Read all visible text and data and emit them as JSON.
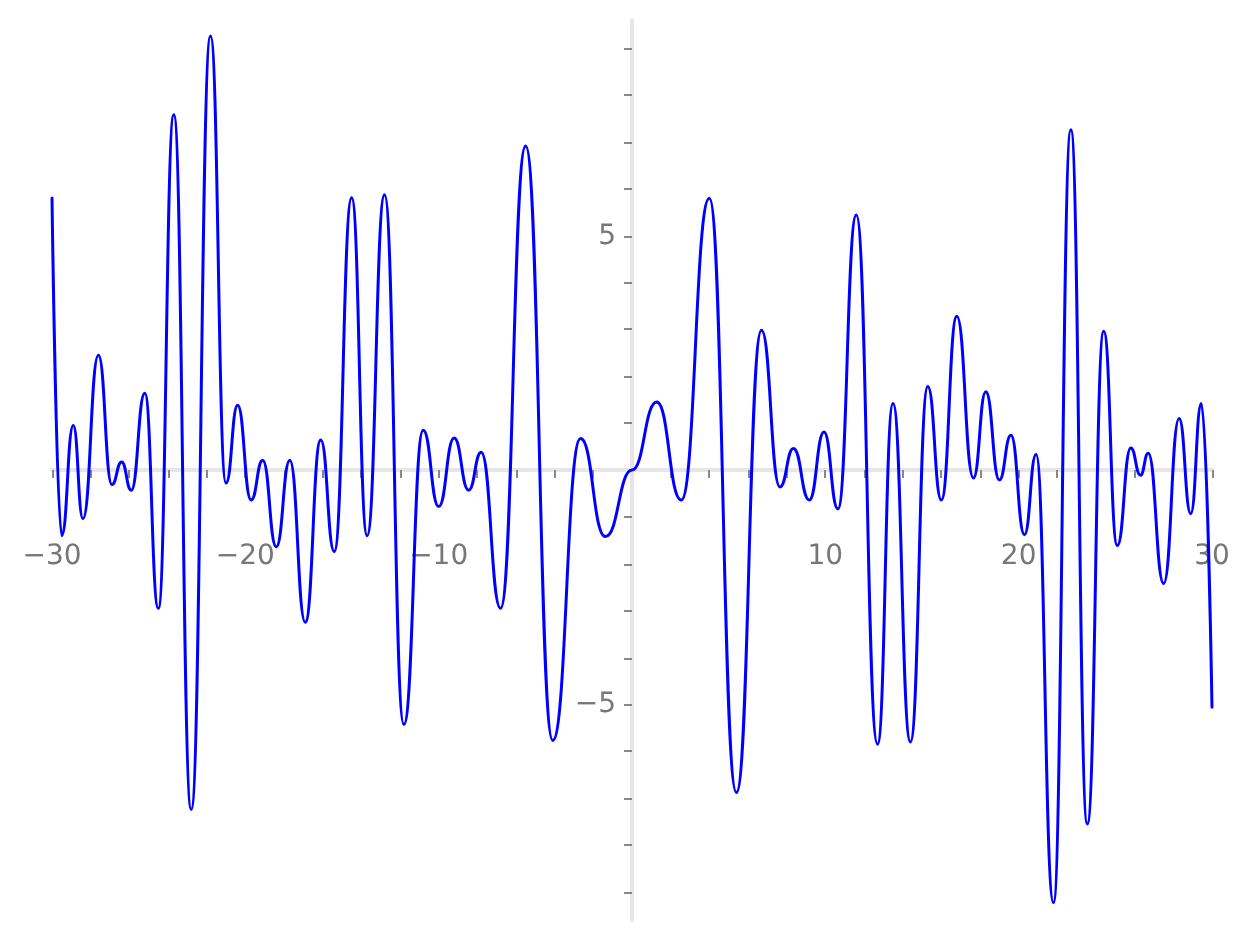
{
  "chart_data": {
    "type": "line",
    "xlim": [
      -30,
      30
    ],
    "ylim": [
      -9.6,
      9.6
    ],
    "xticks": [
      -30,
      {
        "value": -28,
        "label": null
      },
      {
        "value": -26,
        "label": null
      },
      {
        "value": -24,
        "label": null
      },
      {
        "value": -22,
        "label": null
      },
      -20,
      {
        "value": -18,
        "label": null
      },
      {
        "value": -16,
        "label": null
      },
      {
        "value": -14,
        "label": null
      },
      {
        "value": -12,
        "label": null
      },
      -10,
      {
        "value": -8,
        "label": null
      },
      {
        "value": -6,
        "label": null
      },
      {
        "value": -4,
        "label": null
      },
      {
        "value": -2,
        "label": null
      },
      {
        "value": 2,
        "label": null
      },
      {
        "value": 4,
        "label": null
      },
      {
        "value": 6,
        "label": null
      },
      {
        "value": 8,
        "label": null
      },
      10,
      {
        "value": 12,
        "label": null
      },
      {
        "value": 14,
        "label": null
      },
      {
        "value": 16,
        "label": null
      },
      {
        "value": 18,
        "label": null
      },
      20,
      {
        "value": 22,
        "label": null
      },
      {
        "value": 24,
        "label": null
      },
      {
        "value": 26,
        "label": null
      },
      {
        "value": 28,
        "label": null
      },
      30
    ],
    "yticks": [
      {
        "value": -9,
        "label": null
      },
      {
        "value": -8,
        "label": null
      },
      {
        "value": -7,
        "label": null
      },
      {
        "value": -6,
        "label": null
      },
      -5,
      {
        "value": -4,
        "label": null
      },
      {
        "value": -3,
        "label": null
      },
      {
        "value": -2,
        "label": null
      },
      {
        "value": -1,
        "label": null
      },
      {
        "value": 1,
        "label": null
      },
      {
        "value": 2,
        "label": null
      },
      {
        "value": 3,
        "label": null
      },
      {
        "value": 4,
        "label": null
      },
      5,
      {
        "value": 6,
        "label": null
      },
      {
        "value": 7,
        "label": null
      },
      {
        "value": 8,
        "label": null
      },
      {
        "value": 9,
        "label": null
      }
    ],
    "grid": false,
    "marker": "none",
    "line_style": "solid",
    "series": [
      {
        "color": "#0000ff",
        "x": [
          -30,
          -29.5,
          -28.9,
          -28.4,
          -27.6,
          -26.9,
          -26.4,
          -25.9,
          -25.2,
          -24.5,
          -23.7,
          -22.8,
          -21.8,
          -21.0,
          -20.4,
          -19.7,
          -19.1,
          -18.4,
          -17.7,
          -16.9,
          -16.1,
          -15.4,
          -14.5,
          -13.7,
          -12.8,
          -11.8,
          -10.8,
          -10.0,
          -9.2,
          -8.45,
          -7.8,
          -6.8,
          -5.5,
          -4.1,
          -2.66,
          -1.38,
          0,
          1.28,
          2.55,
          4.0,
          5.4,
          6.7,
          7.65,
          8.35,
          9.17,
          9.93,
          10.65,
          11.6,
          12.7,
          13.5,
          14.4,
          15.3,
          16.0,
          16.8,
          17.66,
          18.3,
          19.0,
          19.6,
          20.3,
          20.9,
          21.8,
          22.7,
          23.55,
          24.4,
          25.1,
          25.8,
          26.3,
          26.7,
          27.5,
          28.3,
          28.9,
          29.45,
          30
        ],
        "values": [
          5.8,
          -1.4,
          0.95,
          -1.04,
          2.45,
          -0.31,
          0.17,
          -0.43,
          1.64,
          -2.95,
          7.58,
          -7.24,
          9.26,
          -0.28,
          1.38,
          -0.64,
          0.21,
          -1.64,
          0.21,
          -3.25,
          0.64,
          -1.74,
          5.81,
          -1.4,
          5.87,
          -5.43,
          0.85,
          -0.78,
          0.68,
          -0.43,
          0.38,
          -2.95,
          6.91,
          -5.77,
          0.67,
          -1.42,
          0,
          1.45,
          -0.64,
          5.8,
          -6.88,
          2.98,
          -0.36,
          0.46,
          -0.64,
          0.81,
          -0.83,
          5.44,
          -5.85,
          1.42,
          -5.8,
          1.78,
          -0.64,
          3.28,
          -0.17,
          1.67,
          -0.21,
          0.74,
          -1.38,
          0.33,
          -9.23,
          7.26,
          -7.55,
          2.96,
          -1.61,
          0.47,
          -0.11,
          0.36,
          -2.42,
          1.1,
          -0.93,
          1.42,
          -5.06
        ]
      }
    ]
  }
}
